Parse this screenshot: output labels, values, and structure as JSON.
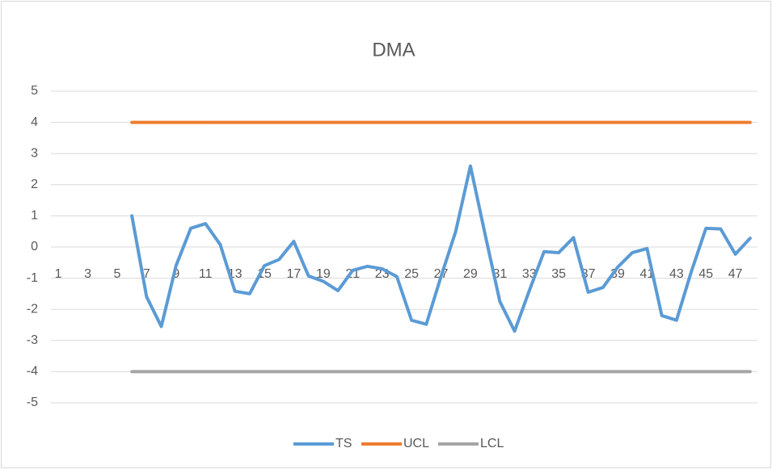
{
  "chart_data": {
    "type": "line",
    "title": "DMA",
    "categories": [
      1,
      null,
      3,
      null,
      5,
      null,
      7,
      null,
      9,
      null,
      11,
      null,
      13,
      null,
      15,
      null,
      17,
      null,
      19,
      null,
      21,
      null,
      23,
      null,
      25,
      null,
      27,
      null,
      29,
      null,
      31,
      null,
      33,
      null,
      35,
      null,
      37,
      null,
      39,
      null,
      41,
      null,
      43,
      null,
      45,
      null,
      47,
      null
    ],
    "series": [
      {
        "name": "TS",
        "color": "#5b9bd5",
        "values": [
          null,
          null,
          null,
          null,
          null,
          1.0,
          -1.6,
          -2.55,
          -0.6,
          0.6,
          0.75,
          0.08,
          -1.42,
          -1.5,
          -0.6,
          -0.4,
          0.18,
          -0.93,
          -1.1,
          -1.4,
          -0.75,
          -0.62,
          -0.7,
          -0.95,
          -2.35,
          -2.48,
          -0.95,
          0.5,
          2.6,
          0.4,
          -1.75,
          -2.7,
          -1.4,
          -0.15,
          -0.18,
          0.3,
          -1.45,
          -1.3,
          -0.65,
          -0.18,
          -0.05,
          -2.2,
          -2.35,
          -0.8,
          0.6,
          0.58,
          -0.23,
          0.28
        ]
      },
      {
        "name": "UCL",
        "color": "#ed7d31",
        "values": [
          null,
          null,
          null,
          null,
          null,
          4,
          4,
          4,
          4,
          4,
          4,
          4,
          4,
          4,
          4,
          4,
          4,
          4,
          4,
          4,
          4,
          4,
          4,
          4,
          4,
          4,
          4,
          4,
          4,
          4,
          4,
          4,
          4,
          4,
          4,
          4,
          4,
          4,
          4,
          4,
          4,
          4,
          4,
          4,
          4,
          4,
          4,
          4
        ]
      },
      {
        "name": "LCL",
        "color": "#a5a5a5",
        "values": [
          null,
          null,
          null,
          null,
          null,
          -4,
          -4,
          -4,
          -4,
          -4,
          -4,
          -4,
          -4,
          -4,
          -4,
          -4,
          -4,
          -4,
          -4,
          -4,
          -4,
          -4,
          -4,
          -4,
          -4,
          -4,
          -4,
          -4,
          -4,
          -4,
          -4,
          -4,
          -4,
          -4,
          -4,
          -4,
          -4,
          -4,
          -4,
          -4,
          -4,
          -4,
          -4,
          -4,
          -4,
          -4,
          -4,
          -4
        ]
      }
    ],
    "ylim": [
      -5,
      5
    ],
    "yticks": [
      -5,
      -4,
      -3,
      -2,
      -1,
      0,
      1,
      2,
      3,
      4,
      5
    ],
    "grid": true,
    "legend": "bottom"
  }
}
